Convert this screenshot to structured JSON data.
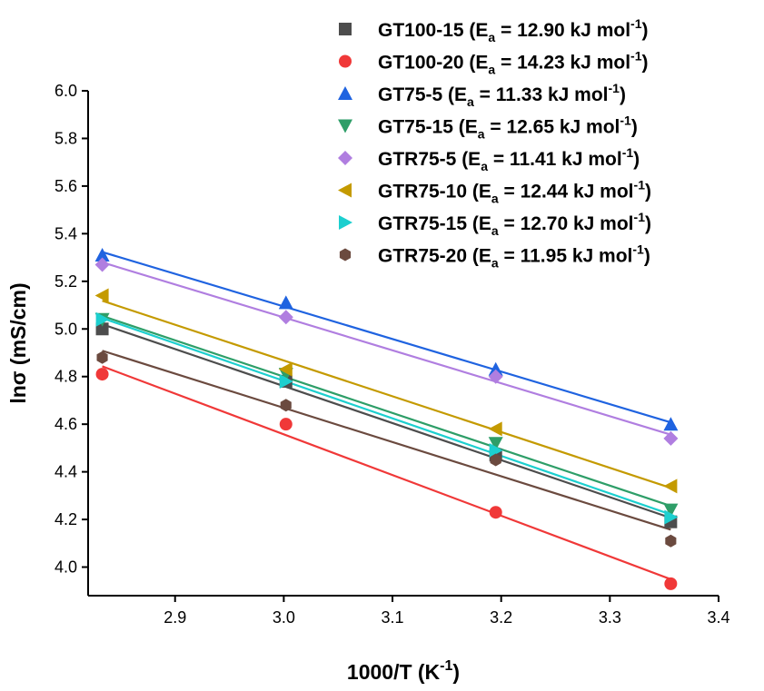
{
  "chart_data": {
    "type": "scatter",
    "xlabel": "1000/T (K",
    "xlabel_sup": "-1",
    "xlabel_tail": ")",
    "ylabel": "lnσ (mS/cm)",
    "xlim": [
      2.82,
      3.4
    ],
    "ylim": [
      3.88,
      6.0
    ],
    "xticks": [
      2.9,
      3.0,
      3.1,
      3.2,
      3.3,
      3.4
    ],
    "yticks": [
      4.0,
      4.2,
      4.4,
      4.6,
      4.8,
      5.0,
      5.2,
      5.4,
      5.6,
      5.8,
      6.0
    ],
    "fit_lines": true,
    "grid": false,
    "legend_position": "top-right",
    "x": [
      2.833,
      3.002,
      3.195,
      3.356
    ],
    "series": [
      {
        "name": "GT100-15",
        "label_pre": "GT100-15 (E",
        "label_sub": "a",
        "label_mid": " = 12.90 kJ mol",
        "label_sup": "-1",
        "label_post": ")",
        "marker": "square",
        "color": "#4d4d4d",
        "line_color": "#4d4d4d",
        "values": [
          5.0,
          4.78,
          4.47,
          4.19
        ]
      },
      {
        "name": "GT100-20",
        "label_pre": "GT100-20 (E",
        "label_sub": "a",
        "label_mid": " = 14.23 kJ mol",
        "label_sup": "-1",
        "label_post": ")",
        "marker": "circle",
        "color": "#f03838",
        "line_color": "#f03838",
        "values": [
          4.81,
          4.6,
          4.23,
          3.93
        ]
      },
      {
        "name": "GT75-5",
        "label_pre": "GT75-5 (E",
        "label_sub": "a",
        "label_mid": " = 11.33 kJ mol",
        "label_sup": "-1",
        "label_post": ")",
        "marker": "triangle-up",
        "color": "#1f63e0",
        "line_color": "#1f63e0",
        "values": [
          5.31,
          5.11,
          4.83,
          4.6
        ]
      },
      {
        "name": "GT75-15",
        "label_pre": "GT75-15 (E",
        "label_sub": "a",
        "label_mid": " = 12.65 kJ mol",
        "label_sup": "-1",
        "label_post": ")",
        "marker": "triangle-down",
        "color": "#2e9e68",
        "line_color": "#2e9e68",
        "values": [
          5.04,
          4.81,
          4.52,
          4.24
        ]
      },
      {
        "name": "GTR75-5",
        "label_pre": "GTR75-5 (E",
        "label_sub": "a",
        "label_mid": " = 11.41 kJ mol",
        "label_sup": "-1",
        "label_post": ")",
        "marker": "diamond",
        "color": "#b07ee0",
        "line_color": "#b07ee0",
        "values": [
          5.27,
          5.05,
          4.8,
          4.54
        ]
      },
      {
        "name": "GTR75-10",
        "label_pre": "GTR75-10 (E",
        "label_sub": "a",
        "label_mid": " = 12.44 kJ mol",
        "label_sup": "-1",
        "label_post": ")",
        "marker": "triangle-left",
        "color": "#c49a00",
        "line_color": "#c49a00",
        "values": [
          5.14,
          4.83,
          4.58,
          4.34
        ]
      },
      {
        "name": "GTR75-15",
        "label_pre": "GTR75-15 (E",
        "label_sub": "a",
        "label_mid": " = 12.70 kJ mol",
        "label_sup": "-1",
        "label_post": ")",
        "marker": "triangle-right",
        "color": "#1ccfcf",
        "line_color": "#1ccfcf",
        "values": [
          5.04,
          4.78,
          4.49,
          4.21
        ]
      },
      {
        "name": "GTR75-20",
        "label_pre": "GTR75-20 (E",
        "label_sub": "a",
        "label_mid": " = 11.95 kJ mol",
        "label_sup": "-1",
        "label_post": ")",
        "marker": "hexagon",
        "color": "#6b4a3f",
        "line_color": "#6b4a3f",
        "values": [
          4.88,
          4.68,
          4.45,
          4.11
        ]
      }
    ]
  }
}
